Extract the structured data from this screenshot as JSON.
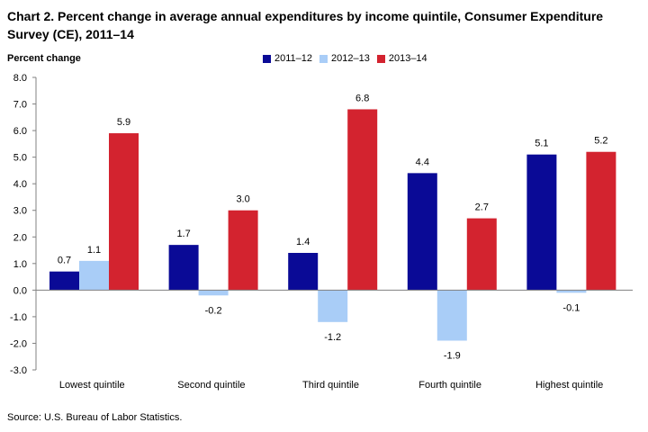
{
  "chart_data": {
    "type": "bar",
    "title": "Chart 2.  Percent change in average annual expenditures by income quintile, Consumer Expenditure Survey (CE), 2011–14",
    "ylabel": "Percent change",
    "xlabel": "",
    "ylim": [
      -3.0,
      8.0
    ],
    "yticks": [
      "8.0",
      "7.0",
      "6.0",
      "5.0",
      "4.0",
      "3.0",
      "2.0",
      "1.0",
      "0.0",
      "-1.0",
      "-2.0",
      "-3.0"
    ],
    "ytick_values": [
      8,
      7,
      6,
      5,
      4,
      3,
      2,
      1,
      0,
      -1,
      -2,
      -3
    ],
    "categories": [
      "Lowest quintile",
      "Second quintile",
      "Third quintile",
      "Fourth quintile",
      "Highest quintile"
    ],
    "series": [
      {
        "name": "2011–12",
        "color": "#0a0a96",
        "values": [
          0.7,
          1.7,
          1.4,
          4.4,
          5.1
        ],
        "labels": [
          "0.7",
          "1.7",
          "1.4",
          "4.4",
          "5.1"
        ]
      },
      {
        "name": "2012–13",
        "color": "#a9cdf7",
        "values": [
          1.1,
          -0.2,
          -1.2,
          -1.9,
          -0.1
        ],
        "labels": [
          "1.1",
          "-0.2",
          "-1.2",
          "-1.9",
          "-0.1"
        ]
      },
      {
        "name": "2013–14",
        "color": "#d3232f",
        "values": [
          5.9,
          3.0,
          6.8,
          2.7,
          5.2
        ],
        "labels": [
          "5.9",
          "3.0",
          "6.8",
          "2.7",
          "5.2"
        ]
      }
    ],
    "legend_position": "top-center",
    "grid": false
  },
  "source": "Source: U.S. Bureau of Labor Statistics."
}
